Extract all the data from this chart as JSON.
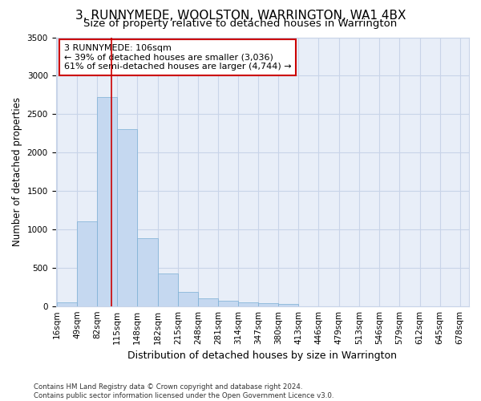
{
  "title": "3, RUNNYMEDE, WOOLSTON, WARRINGTON, WA1 4BX",
  "subtitle": "Size of property relative to detached houses in Warrington",
  "xlabel": "Distribution of detached houses by size in Warrington",
  "ylabel": "Number of detached properties",
  "bar_edges": [
    16,
    49,
    82,
    115,
    148,
    182,
    215,
    248,
    281,
    314,
    347,
    380,
    413,
    446,
    479,
    513,
    546,
    579,
    612,
    645,
    678
  ],
  "bar_heights": [
    50,
    1100,
    2720,
    2300,
    880,
    420,
    180,
    100,
    70,
    50,
    40,
    30,
    0,
    0,
    0,
    0,
    0,
    0,
    0,
    0
  ],
  "bar_color": "#c5d8f0",
  "bar_edge_color": "#7bafd4",
  "grid_color": "#c8d4e8",
  "bg_color": "#e8eef8",
  "vline_x": 106,
  "vline_color": "#cc0000",
  "annotation_text": "3 RUNNYMEDE: 106sqm\n← 39% of detached houses are smaller (3,036)\n61% of semi-detached houses are larger (4,744) →",
  "annotation_box_color": "#ffffff",
  "annotation_box_edge": "#cc0000",
  "ylim": [
    0,
    3500
  ],
  "yticks": [
    0,
    500,
    1000,
    1500,
    2000,
    2500,
    3000,
    3500
  ],
  "footer_line1": "Contains HM Land Registry data © Crown copyright and database right 2024.",
  "footer_line2": "Contains public sector information licensed under the Open Government Licence v3.0.",
  "title_fontsize": 11,
  "subtitle_fontsize": 9.5,
  "tick_label_fontsize": 7.5,
  "ylabel_fontsize": 8.5,
  "xlabel_fontsize": 9
}
